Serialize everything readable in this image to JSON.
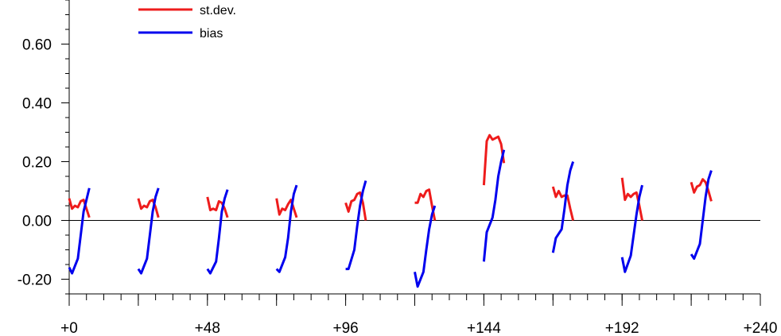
{
  "chart_data": {
    "type": "line",
    "x_ticks": [
      "+0",
      "+48",
      "+96",
      "+144",
      "+192",
      "+240"
    ],
    "xlim": [
      0,
      240
    ],
    "x_minor_step": 6,
    "y_ticks": [
      "-0.20",
      "0.00",
      "0.20",
      "0.40",
      "0.60"
    ],
    "ylim": [
      -0.25,
      0.75
    ],
    "y_minor_step": 0.05,
    "zero_line": true,
    "legend": {
      "position": "top-left"
    },
    "series": [
      {
        "name": "st.dev.",
        "color": "#ee1c1c",
        "segments": [
          [
            [
              0,
              0.075
            ],
            [
              1,
              0.04
            ],
            [
              2,
              0.05
            ],
            [
              3,
              0.045
            ],
            [
              4,
              0.065
            ],
            [
              5,
              0.07
            ],
            [
              6,
              0.04
            ],
            [
              7,
              0.01
            ]
          ],
          [
            [
              24,
              0.075
            ],
            [
              25,
              0.04
            ],
            [
              26,
              0.05
            ],
            [
              27,
              0.045
            ],
            [
              28,
              0.065
            ],
            [
              29,
              0.07
            ],
            [
              30,
              0.045
            ],
            [
              31,
              0.01
            ]
          ],
          [
            [
              48,
              0.08
            ],
            [
              49,
              0.035
            ],
            [
              50,
              0.04
            ],
            [
              51,
              0.035
            ],
            [
              52,
              0.065
            ],
            [
              53,
              0.06
            ],
            [
              54,
              0.04
            ],
            [
              55,
              0.01
            ]
          ],
          [
            [
              72,
              0.075
            ],
            [
              73,
              0.02
            ],
            [
              74,
              0.04
            ],
            [
              75,
              0.035
            ],
            [
              76,
              0.055
            ],
            [
              77,
              0.07
            ],
            [
              78,
              0.04
            ],
            [
              79,
              0.01
            ]
          ],
          [
            [
              96,
              0.06
            ],
            [
              97,
              0.03
            ],
            [
              98,
              0.065
            ],
            [
              99,
              0.07
            ],
            [
              100,
              0.09
            ],
            [
              101,
              0.095
            ],
            [
              102,
              0.06
            ],
            [
              103,
              0.0
            ]
          ],
          [
            [
              120,
              0.06
            ],
            [
              121,
              0.06
            ],
            [
              122,
              0.09
            ],
            [
              123,
              0.08
            ],
            [
              124,
              0.1
            ],
            [
              125,
              0.105
            ],
            [
              126,
              0.05
            ],
            [
              127,
              0.0
            ]
          ],
          [
            [
              144,
              0.12
            ],
            [
              145,
              0.27
            ],
            [
              146,
              0.29
            ],
            [
              147,
              0.275
            ],
            [
              148,
              0.28
            ],
            [
              149,
              0.285
            ],
            [
              150,
              0.26
            ],
            [
              151,
              0.195
            ]
          ],
          [
            [
              168,
              0.115
            ],
            [
              169,
              0.08
            ],
            [
              170,
              0.1
            ],
            [
              171,
              0.08
            ],
            [
              172,
              0.085
            ],
            [
              173,
              0.085
            ],
            [
              174,
              0.04
            ],
            [
              175,
              0.0
            ]
          ],
          [
            [
              192,
              0.145
            ],
            [
              193,
              0.07
            ],
            [
              194,
              0.09
            ],
            [
              195,
              0.08
            ],
            [
              196,
              0.09
            ],
            [
              197,
              0.095
            ],
            [
              198,
              0.05
            ],
            [
              199,
              0.0
            ]
          ],
          [
            [
              216,
              0.13
            ],
            [
              217,
              0.095
            ],
            [
              218,
              0.115
            ],
            [
              219,
              0.12
            ],
            [
              220,
              0.14
            ],
            [
              221,
              0.13
            ],
            [
              222,
              0.1
            ],
            [
              223,
              0.065
            ]
          ]
        ]
      },
      {
        "name": "bias",
        "color": "#0000ee",
        "segments": [
          [
            [
              0,
              -0.16
            ],
            [
              1,
              -0.18
            ],
            [
              3,
              -0.13
            ],
            [
              4,
              -0.05
            ],
            [
              5,
              0.03
            ],
            [
              6,
              0.07
            ],
            [
              7,
              0.11
            ]
          ],
          [
            [
              24,
              -0.165
            ],
            [
              25,
              -0.18
            ],
            [
              27,
              -0.13
            ],
            [
              28,
              -0.05
            ],
            [
              29,
              0.03
            ],
            [
              30,
              0.08
            ],
            [
              31,
              0.11
            ]
          ],
          [
            [
              48,
              -0.165
            ],
            [
              49,
              -0.18
            ],
            [
              51,
              -0.14
            ],
            [
              52,
              -0.06
            ],
            [
              53,
              0.03
            ],
            [
              54,
              0.075
            ],
            [
              55,
              0.105
            ]
          ],
          [
            [
              72,
              -0.165
            ],
            [
              73,
              -0.175
            ],
            [
              75,
              -0.125
            ],
            [
              76,
              -0.06
            ],
            [
              77,
              0.03
            ],
            [
              78,
              0.09
            ],
            [
              79,
              0.12
            ]
          ],
          [
            [
              96,
              -0.165
            ],
            [
              97,
              -0.165
            ],
            [
              99,
              -0.1
            ],
            [
              100,
              -0.02
            ],
            [
              101,
              0.05
            ],
            [
              102,
              0.1
            ],
            [
              103,
              0.135
            ]
          ],
          [
            [
              120,
              -0.175
            ],
            [
              121,
              -0.225
            ],
            [
              123,
              -0.175
            ],
            [
              124,
              -0.1
            ],
            [
              125,
              -0.03
            ],
            [
              126,
              0.02
            ],
            [
              127,
              0.05
            ]
          ],
          [
            [
              144,
              -0.14
            ],
            [
              145,
              -0.04
            ],
            [
              147,
              0.01
            ],
            [
              148,
              0.07
            ],
            [
              149,
              0.15
            ],
            [
              150,
              0.2
            ],
            [
              151,
              0.24
            ]
          ],
          [
            [
              168,
              -0.11
            ],
            [
              169,
              -0.06
            ],
            [
              171,
              -0.03
            ],
            [
              172,
              0.04
            ],
            [
              173,
              0.12
            ],
            [
              174,
              0.17
            ],
            [
              175,
              0.2
            ]
          ],
          [
            [
              192,
              -0.125
            ],
            [
              193,
              -0.175
            ],
            [
              195,
              -0.12
            ],
            [
              196,
              -0.05
            ],
            [
              197,
              0.02
            ],
            [
              198,
              0.08
            ],
            [
              199,
              0.12
            ]
          ],
          [
            [
              216,
              -0.115
            ],
            [
              217,
              -0.13
            ],
            [
              219,
              -0.08
            ],
            [
              220,
              0.0
            ],
            [
              221,
              0.08
            ],
            [
              222,
              0.14
            ],
            [
              223,
              0.17
            ]
          ]
        ]
      }
    ]
  }
}
